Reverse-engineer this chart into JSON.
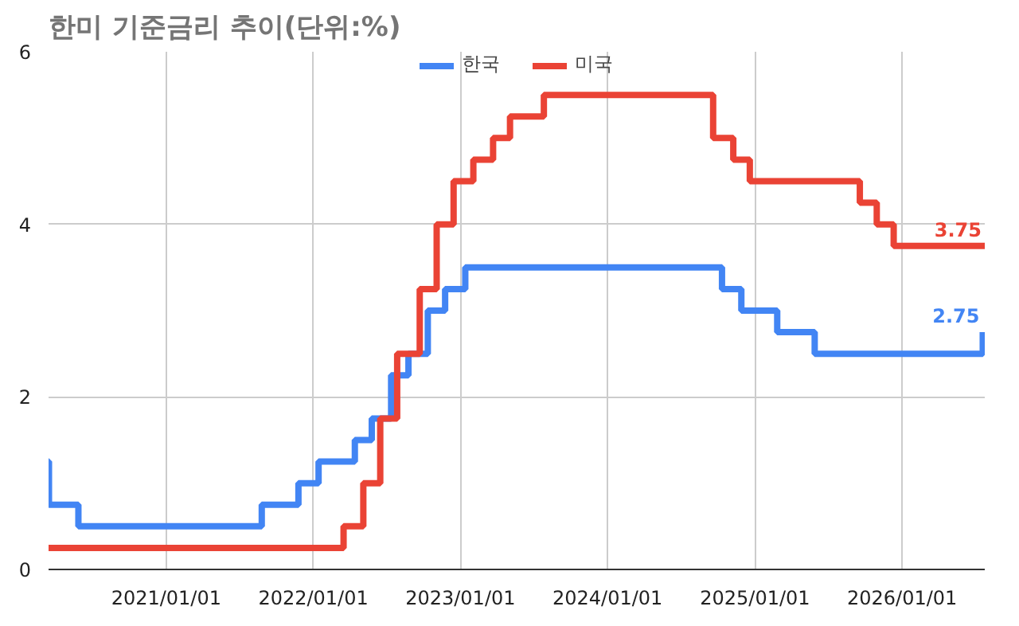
{
  "chart_data": {
    "type": "step",
    "title": "한미 기준금리 추이(단위:%)",
    "legend": "top",
    "grid": true,
    "line_style": "solid",
    "marker": "none",
    "xlim": [
      "2020-03-15",
      "2026-07-25"
    ],
    "xticks": [
      {
        "value": "2021-01-01",
        "label": "2021/01/01"
      },
      {
        "value": "2022-01-01",
        "label": "2022/01/01"
      },
      {
        "value": "2023-01-01",
        "label": "2023/01/01"
      },
      {
        "value": "2024-01-01",
        "label": "2024/01/01"
      },
      {
        "value": "2025-01-01",
        "label": "2025/01/01"
      },
      {
        "value": "2026-01-01",
        "label": "2026/01/01"
      }
    ],
    "ylim": [
      0,
      6
    ],
    "yticks": [
      0,
      2,
      4,
      6
    ],
    "series": [
      {
        "name": "한국",
        "color": "#4285f4",
        "x": [
          "2020-03-15",
          "2020-03-16",
          "2020-05-28",
          "2021-08-26",
          "2021-11-25",
          "2022-01-14",
          "2022-04-14",
          "2022-05-26",
          "2022-07-13",
          "2022-08-25",
          "2022-10-12",
          "2022-11-24",
          "2023-01-13",
          "2024-10-11",
          "2024-11-28",
          "2025-02-25",
          "2025-05-29",
          "2026-07-20"
        ],
        "values": [
          1.25,
          0.75,
          0.5,
          0.75,
          1.0,
          1.25,
          1.5,
          1.75,
          2.25,
          2.5,
          3.0,
          3.25,
          3.5,
          3.25,
          3.0,
          2.75,
          2.5,
          2.75
        ]
      },
      {
        "name": "미국",
        "color": "#ea4335",
        "x": [
          "2020-03-15",
          "2022-03-17",
          "2022-05-05",
          "2022-06-16",
          "2022-07-28",
          "2022-09-22",
          "2022-11-03",
          "2022-12-15",
          "2023-02-02",
          "2023-03-23",
          "2023-05-04",
          "2023-07-27",
          "2024-09-19",
          "2024-11-08",
          "2024-12-19",
          "2025-09-18",
          "2025-10-30",
          "2025-12-11",
          "2026-07-25"
        ],
        "values": [
          0.25,
          0.5,
          1.0,
          1.75,
          2.5,
          3.25,
          4.0,
          4.5,
          4.75,
          5.0,
          5.25,
          5.5,
          5.0,
          4.75,
          4.5,
          4.25,
          4.0,
          3.75,
          3.75
        ]
      }
    ],
    "annotations": [
      {
        "text": "2.75",
        "x": "2026-07-20",
        "y": 2.75
      },
      {
        "text": "3.75",
        "x": "2026-07-25",
        "y": 3.75
      }
    ]
  }
}
